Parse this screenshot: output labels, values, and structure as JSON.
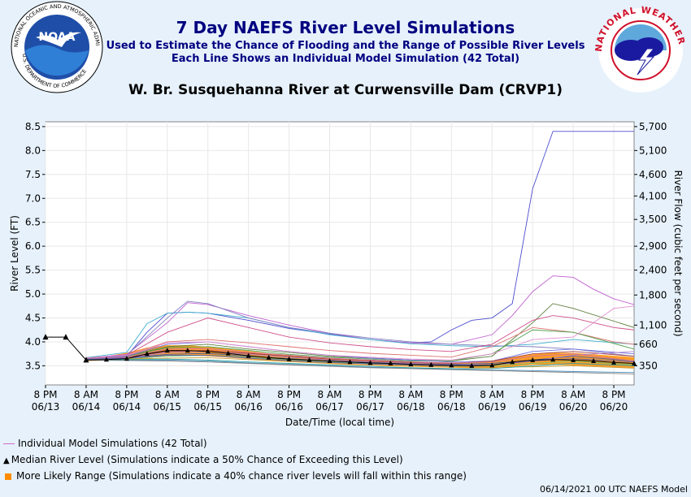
{
  "header": {
    "title": "7 Day NAEFS River Level Simulations",
    "subtitle1": "Used to Estimate the Chance of Flooding and the Range of Possible River Levels",
    "subtitle2": "Each Line Shows an Individual Model Simulation (42 Total)",
    "gauge_title": "W. Br. Susquehanna River at Curwensville Dam (CRVP1)"
  },
  "logos": {
    "noaa": "NOAA",
    "nws_ring": "NATIONAL WEATHER SERVICE",
    "noaa_ring": "NATIONAL OCEANIC AND ATMOSPHERIC ADMINISTRATION",
    "doc_ring": "U.S. DEPARTMENT OF COMMERCE"
  },
  "legend": {
    "individual": "Individual Model Simulations (42 Total)",
    "median": "Median River Level (Simulations indicate a 50% Chance of Exceeding this Level)",
    "range": "More Likely Range (Simulations indicate a 40% chance river levels will fall within this range)"
  },
  "footer": "06/14/2021 00 UTC NAEFS Model",
  "colors": {
    "title": "#000080",
    "band": "#ff8c00",
    "median": "#000000",
    "member_blue": "#5555cc",
    "member_pink": "#d06ac8"
  },
  "chart_data": {
    "type": "line",
    "ylabel": "River Level (FT)",
    "y2label": "River Flow (cubic feet per second)",
    "xlabel": "Date/Time (local time)",
    "ylim": [
      3.1,
      8.6
    ],
    "yticks": [
      "3.5",
      "4.0",
      "4.5",
      "5.0",
      "5.5",
      "6.0",
      "6.5",
      "7.0",
      "7.5",
      "8.0",
      "8.5"
    ],
    "y2ticks": [
      {
        "level": 3.5,
        "label": "350"
      },
      {
        "level": 3.95,
        "label": "660"
      },
      {
        "level": 4.35,
        "label": "1,100"
      },
      {
        "level": 4.98,
        "label": "1,800"
      },
      {
        "level": 5.5,
        "label": "2,400"
      },
      {
        "level": 6.0,
        "label": "2,900"
      },
      {
        "level": 6.56,
        "label": "3,500"
      },
      {
        "level": 7.05,
        "label": "4,100"
      },
      {
        "level": 7.5,
        "label": "4,600"
      },
      {
        "level": 8.0,
        "label": "5,100"
      },
      {
        "level": 8.5,
        "label": "5,700"
      }
    ],
    "xlim": [
      0,
      174
    ],
    "xticks": [
      {
        "t": 0,
        "l1": "8 PM",
        "l2": "06/13"
      },
      {
        "t": 12,
        "l1": "8 AM",
        "l2": "06/14"
      },
      {
        "t": 24,
        "l1": "8 PM",
        "l2": "06/14"
      },
      {
        "t": 36,
        "l1": "8 AM",
        "l2": "06/15"
      },
      {
        "t": 48,
        "l1": "8 PM",
        "l2": "06/15"
      },
      {
        "t": 60,
        "l1": "8 AM",
        "l2": "06/16"
      },
      {
        "t": 72,
        "l1": "8 PM",
        "l2": "06/16"
      },
      {
        "t": 84,
        "l1": "8 AM",
        "l2": "06/17"
      },
      {
        "t": 96,
        "l1": "8 PM",
        "l2": "06/17"
      },
      {
        "t": 108,
        "l1": "8 AM",
        "l2": "06/18"
      },
      {
        "t": 120,
        "l1": "8 PM",
        "l2": "06/18"
      },
      {
        "t": 132,
        "l1": "8 AM",
        "l2": "06/19"
      },
      {
        "t": 144,
        "l1": "8 PM",
        "l2": "06/19"
      },
      {
        "t": 156,
        "l1": "8 AM",
        "l2": "06/20"
      },
      {
        "t": 168,
        "l1": "8 PM",
        "l2": "06/20"
      }
    ],
    "observed": {
      "x": [
        0,
        6,
        12
      ],
      "y": [
        4.1,
        4.1,
        3.62
      ]
    },
    "median": {
      "x": [
        12,
        18,
        24,
        30,
        36,
        42,
        48,
        54,
        60,
        66,
        72,
        78,
        84,
        90,
        96,
        102,
        108,
        114,
        120,
        126,
        132,
        138,
        144,
        150,
        156,
        162,
        168,
        174
      ],
      "y": [
        3.62,
        3.63,
        3.65,
        3.75,
        3.82,
        3.82,
        3.8,
        3.76,
        3.71,
        3.67,
        3.64,
        3.62,
        3.6,
        3.58,
        3.56,
        3.55,
        3.53,
        3.52,
        3.51,
        3.5,
        3.51,
        3.58,
        3.62,
        3.63,
        3.62,
        3.6,
        3.57,
        3.55
      ]
    },
    "range": {
      "x": [
        12,
        18,
        24,
        30,
        36,
        42,
        48,
        54,
        60,
        66,
        72,
        78,
        84,
        90,
        96,
        102,
        108,
        114,
        120,
        126,
        132,
        138,
        144,
        150,
        156,
        162,
        168,
        174
      ],
      "upper": [
        3.68,
        3.7,
        3.77,
        3.88,
        3.93,
        3.93,
        3.9,
        3.86,
        3.81,
        3.76,
        3.73,
        3.69,
        3.66,
        3.64,
        3.62,
        3.61,
        3.59,
        3.58,
        3.57,
        3.57,
        3.6,
        3.68,
        3.74,
        3.77,
        3.77,
        3.74,
        3.71,
        3.68
      ],
      "lower": [
        3.6,
        3.61,
        3.62,
        3.66,
        3.71,
        3.71,
        3.7,
        3.67,
        3.64,
        3.6,
        3.58,
        3.56,
        3.54,
        3.52,
        3.51,
        3.49,
        3.48,
        3.47,
        3.46,
        3.45,
        3.45,
        3.48,
        3.52,
        3.52,
        3.51,
        3.49,
        3.47,
        3.45
      ]
    },
    "series": [
      {
        "color": "#4b4bd0",
        "x": [
          12,
          24,
          30,
          36,
          42,
          48,
          60,
          72,
          84,
          96,
          108,
          114,
          120,
          126,
          132,
          138,
          144,
          150,
          156,
          174
        ],
        "y": [
          3.66,
          3.7,
          4.2,
          4.6,
          4.62,
          4.6,
          4.45,
          4.28,
          4.16,
          4.05,
          3.98,
          4.0,
          4.25,
          4.45,
          4.5,
          4.8,
          7.2,
          8.4,
          8.4,
          8.4
        ]
      },
      {
        "color": "#c060d0",
        "x": [
          12,
          24,
          36,
          42,
          48,
          60,
          72,
          84,
          96,
          108,
          120,
          132,
          138,
          144,
          150,
          156,
          162,
          168,
          174
        ],
        "y": [
          3.66,
          3.74,
          4.4,
          4.82,
          4.78,
          4.55,
          4.35,
          4.18,
          4.05,
          3.98,
          3.95,
          4.15,
          4.55,
          5.05,
          5.38,
          5.35,
          5.1,
          4.9,
          4.78
        ]
      },
      {
        "color": "#40b0d0",
        "x": [
          12,
          24,
          30,
          36,
          42,
          48,
          60,
          72,
          84,
          96,
          108,
          120,
          132,
          144,
          156,
          174
        ],
        "y": [
          3.67,
          3.78,
          4.38,
          4.6,
          4.62,
          4.6,
          4.5,
          4.3,
          4.15,
          4.05,
          3.96,
          3.92,
          3.9,
          3.95,
          4.05,
          3.95
        ]
      },
      {
        "color": "#8080c0",
        "x": [
          12,
          24,
          36,
          42,
          48,
          60,
          72,
          84,
          96,
          108,
          120,
          132,
          144,
          156,
          174
        ],
        "y": [
          3.66,
          3.72,
          4.5,
          4.85,
          4.8,
          4.5,
          4.3,
          4.18,
          4.08,
          4.0,
          3.95,
          3.92,
          3.9,
          3.85,
          3.7
        ]
      },
      {
        "color": "#608040",
        "x": [
          12,
          24,
          36,
          48,
          60,
          72,
          84,
          96,
          108,
          120,
          132,
          144,
          150,
          156,
          174
        ],
        "y": [
          3.66,
          3.7,
          3.9,
          3.95,
          3.85,
          3.78,
          3.7,
          3.66,
          3.62,
          3.6,
          3.7,
          4.4,
          4.8,
          4.7,
          4.3
        ]
      },
      {
        "color": "#d0508c",
        "x": [
          12,
          24,
          36,
          48,
          60,
          72,
          84,
          96,
          108,
          120,
          132,
          144,
          150,
          156,
          168,
          174
        ],
        "y": [
          3.66,
          3.72,
          4.2,
          4.5,
          4.3,
          4.1,
          3.98,
          3.9,
          3.84,
          3.8,
          3.95,
          4.45,
          4.55,
          4.5,
          4.3,
          4.25
        ]
      },
      {
        "color": "#e07070",
        "x": [
          12,
          24,
          36,
          48,
          60,
          72,
          84,
          96,
          108,
          120,
          132,
          144,
          156,
          168,
          174
        ],
        "y": [
          3.66,
          3.72,
          4.0,
          4.05,
          3.98,
          3.9,
          3.82,
          3.76,
          3.72,
          3.68,
          3.9,
          4.3,
          4.2,
          4.0,
          3.95
        ]
      },
      {
        "color": "#50a050",
        "x": [
          12,
          24,
          36,
          48,
          60,
          72,
          84,
          96,
          108,
          120,
          132,
          144,
          156,
          174
        ],
        "y": [
          3.66,
          3.7,
          3.88,
          3.9,
          3.82,
          3.74,
          3.68,
          3.64,
          3.6,
          3.6,
          3.75,
          4.25,
          4.2,
          3.85
        ]
      },
      {
        "color": "#7070e0",
        "x": [
          12,
          24,
          36,
          48,
          60,
          72,
          84,
          96,
          108,
          120,
          132,
          144,
          156,
          174
        ],
        "y": [
          3.66,
          3.7,
          3.95,
          4.0,
          3.9,
          3.8,
          3.72,
          3.66,
          3.62,
          3.58,
          3.6,
          3.8,
          3.85,
          3.75
        ]
      },
      {
        "color": "#e090d0",
        "x": [
          12,
          24,
          36,
          48,
          60,
          72,
          84,
          96,
          108,
          120,
          132,
          144,
          156,
          168,
          174
        ],
        "y": [
          3.66,
          3.72,
          3.98,
          4.0,
          3.9,
          3.8,
          3.72,
          3.68,
          3.64,
          3.62,
          3.75,
          4.05,
          4.1,
          4.7,
          4.75
        ]
      },
      {
        "color": "#a04040",
        "x": [
          12,
          24,
          36,
          48,
          60,
          72,
          84,
          96,
          108,
          120,
          132,
          144,
          156,
          174
        ],
        "y": [
          3.65,
          3.68,
          3.8,
          3.82,
          3.76,
          3.7,
          3.64,
          3.6,
          3.57,
          3.55,
          3.6,
          3.75,
          3.8,
          3.7
        ]
      },
      {
        "color": "#4060a0",
        "x": [
          12,
          24,
          36,
          48,
          60,
          72,
          84,
          96,
          108,
          120,
          132,
          144,
          156,
          174
        ],
        "y": [
          3.65,
          3.66,
          3.74,
          3.76,
          3.7,
          3.65,
          3.6,
          3.57,
          3.55,
          3.53,
          3.55,
          3.62,
          3.7,
          3.6
        ]
      },
      {
        "color": "#70c070",
        "x": [
          12,
          24,
          36,
          48,
          60,
          72,
          84,
          96,
          108,
          120,
          132,
          144,
          156,
          174
        ],
        "y": [
          3.64,
          3.65,
          3.7,
          3.72,
          3.68,
          3.62,
          3.58,
          3.55,
          3.53,
          3.5,
          3.5,
          3.55,
          3.6,
          3.52
        ]
      },
      {
        "color": "#b080d0",
        "x": [
          12,
          24,
          36,
          48,
          60,
          72,
          84,
          96,
          108,
          120,
          132,
          144,
          156,
          174
        ],
        "y": [
          3.64,
          3.66,
          3.78,
          3.8,
          3.74,
          3.68,
          3.62,
          3.58,
          3.55,
          3.52,
          3.52,
          3.6,
          3.72,
          3.8
        ]
      },
      {
        "color": "#c0a040",
        "x": [
          12,
          24,
          36,
          48,
          60,
          72,
          84,
          96,
          108,
          120,
          132,
          144,
          156,
          174
        ],
        "y": [
          3.63,
          3.64,
          3.66,
          3.67,
          3.63,
          3.59,
          3.56,
          3.53,
          3.5,
          3.48,
          3.47,
          3.48,
          3.5,
          3.45
        ]
      },
      {
        "color": "#5090c0",
        "x": [
          12,
          24,
          36,
          48,
          60,
          72,
          84,
          96,
          108,
          120,
          132,
          144,
          156,
          174
        ],
        "y": [
          3.62,
          3.62,
          3.62,
          3.6,
          3.56,
          3.53,
          3.5,
          3.47,
          3.45,
          3.43,
          3.41,
          3.4,
          3.38,
          3.36
        ]
      },
      {
        "color": "#808080",
        "x": [
          12,
          24,
          36,
          48,
          60,
          72,
          84,
          96,
          108,
          120,
          132,
          144,
          156,
          174
        ],
        "y": [
          3.62,
          3.61,
          3.6,
          3.58,
          3.55,
          3.52,
          3.49,
          3.46,
          3.44,
          3.42,
          3.4,
          3.38,
          3.36,
          3.33
        ]
      },
      {
        "color": "#30a0a0",
        "x": [
          12,
          24,
          36,
          48,
          60,
          72,
          84,
          96,
          108,
          120,
          132,
          144,
          156,
          174
        ],
        "y": [
          3.63,
          3.63,
          3.64,
          3.62,
          3.58,
          3.55,
          3.52,
          3.49,
          3.46,
          3.44,
          3.44,
          3.5,
          3.55,
          3.5
        ]
      },
      {
        "color": "#d070a0",
        "x": [
          12,
          24,
          36,
          48,
          60,
          72,
          84,
          96,
          108,
          120,
          132,
          144,
          156,
          174
        ],
        "y": [
          3.65,
          3.68,
          3.85,
          3.86,
          3.78,
          3.72,
          3.66,
          3.62,
          3.58,
          3.56,
          3.58,
          3.7,
          3.75,
          3.6
        ]
      },
      {
        "color": "#6060b0",
        "x": [
          12,
          24,
          36,
          48,
          60,
          72,
          84,
          96,
          108,
          120,
          132,
          144,
          156,
          174
        ],
        "y": [
          3.64,
          3.66,
          3.72,
          3.72,
          3.66,
          3.61,
          3.57,
          3.54,
          3.52,
          3.5,
          3.52,
          3.6,
          3.65,
          3.58
        ]
      }
    ]
  }
}
